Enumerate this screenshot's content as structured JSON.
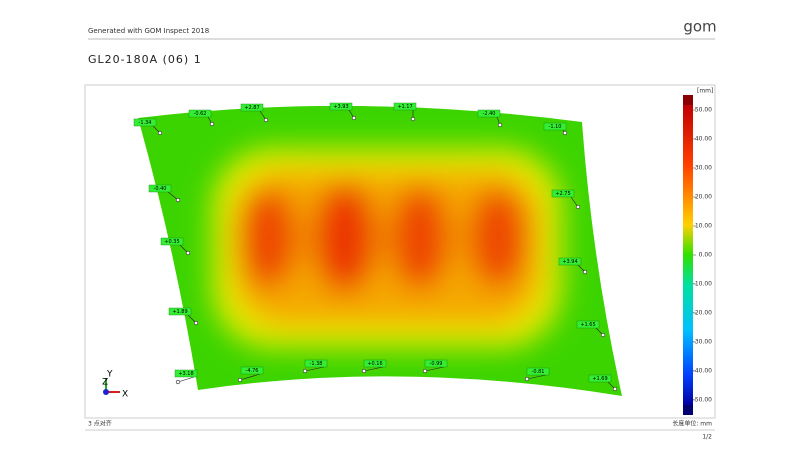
{
  "header": {
    "generator": "Generated with GOM Inspect 2018",
    "logo": "gom"
  },
  "title": "GL20-180A  (06)  1",
  "deviation_labels": [
    "-1.34",
    "-0.62",
    "+2.87",
    "+3.93",
    "+1.17",
    "-2.40",
    "-1.10",
    "-0.40",
    "+2.75",
    "+0.35",
    "+3.94",
    "+1.89",
    "+1.65",
    "+3.18",
    "-4.76",
    "-1.38",
    "+0.16",
    "-0.99",
    "-0.81",
    "+1.69"
  ],
  "color_scale": {
    "unit": "[mm]",
    "ticks": [
      "50.00",
      "40.00",
      "30.00",
      "20.00",
      "10.00",
      "0.00",
      "-10.00",
      "-20.00",
      "-30.00",
      "-40.00",
      "-50.00"
    ]
  },
  "axes": {
    "z": "Z",
    "y": "Y",
    "x": "X"
  },
  "footer": {
    "alignment": "3 点对齐",
    "unit": "长度单位: mm",
    "page": "1/2"
  }
}
